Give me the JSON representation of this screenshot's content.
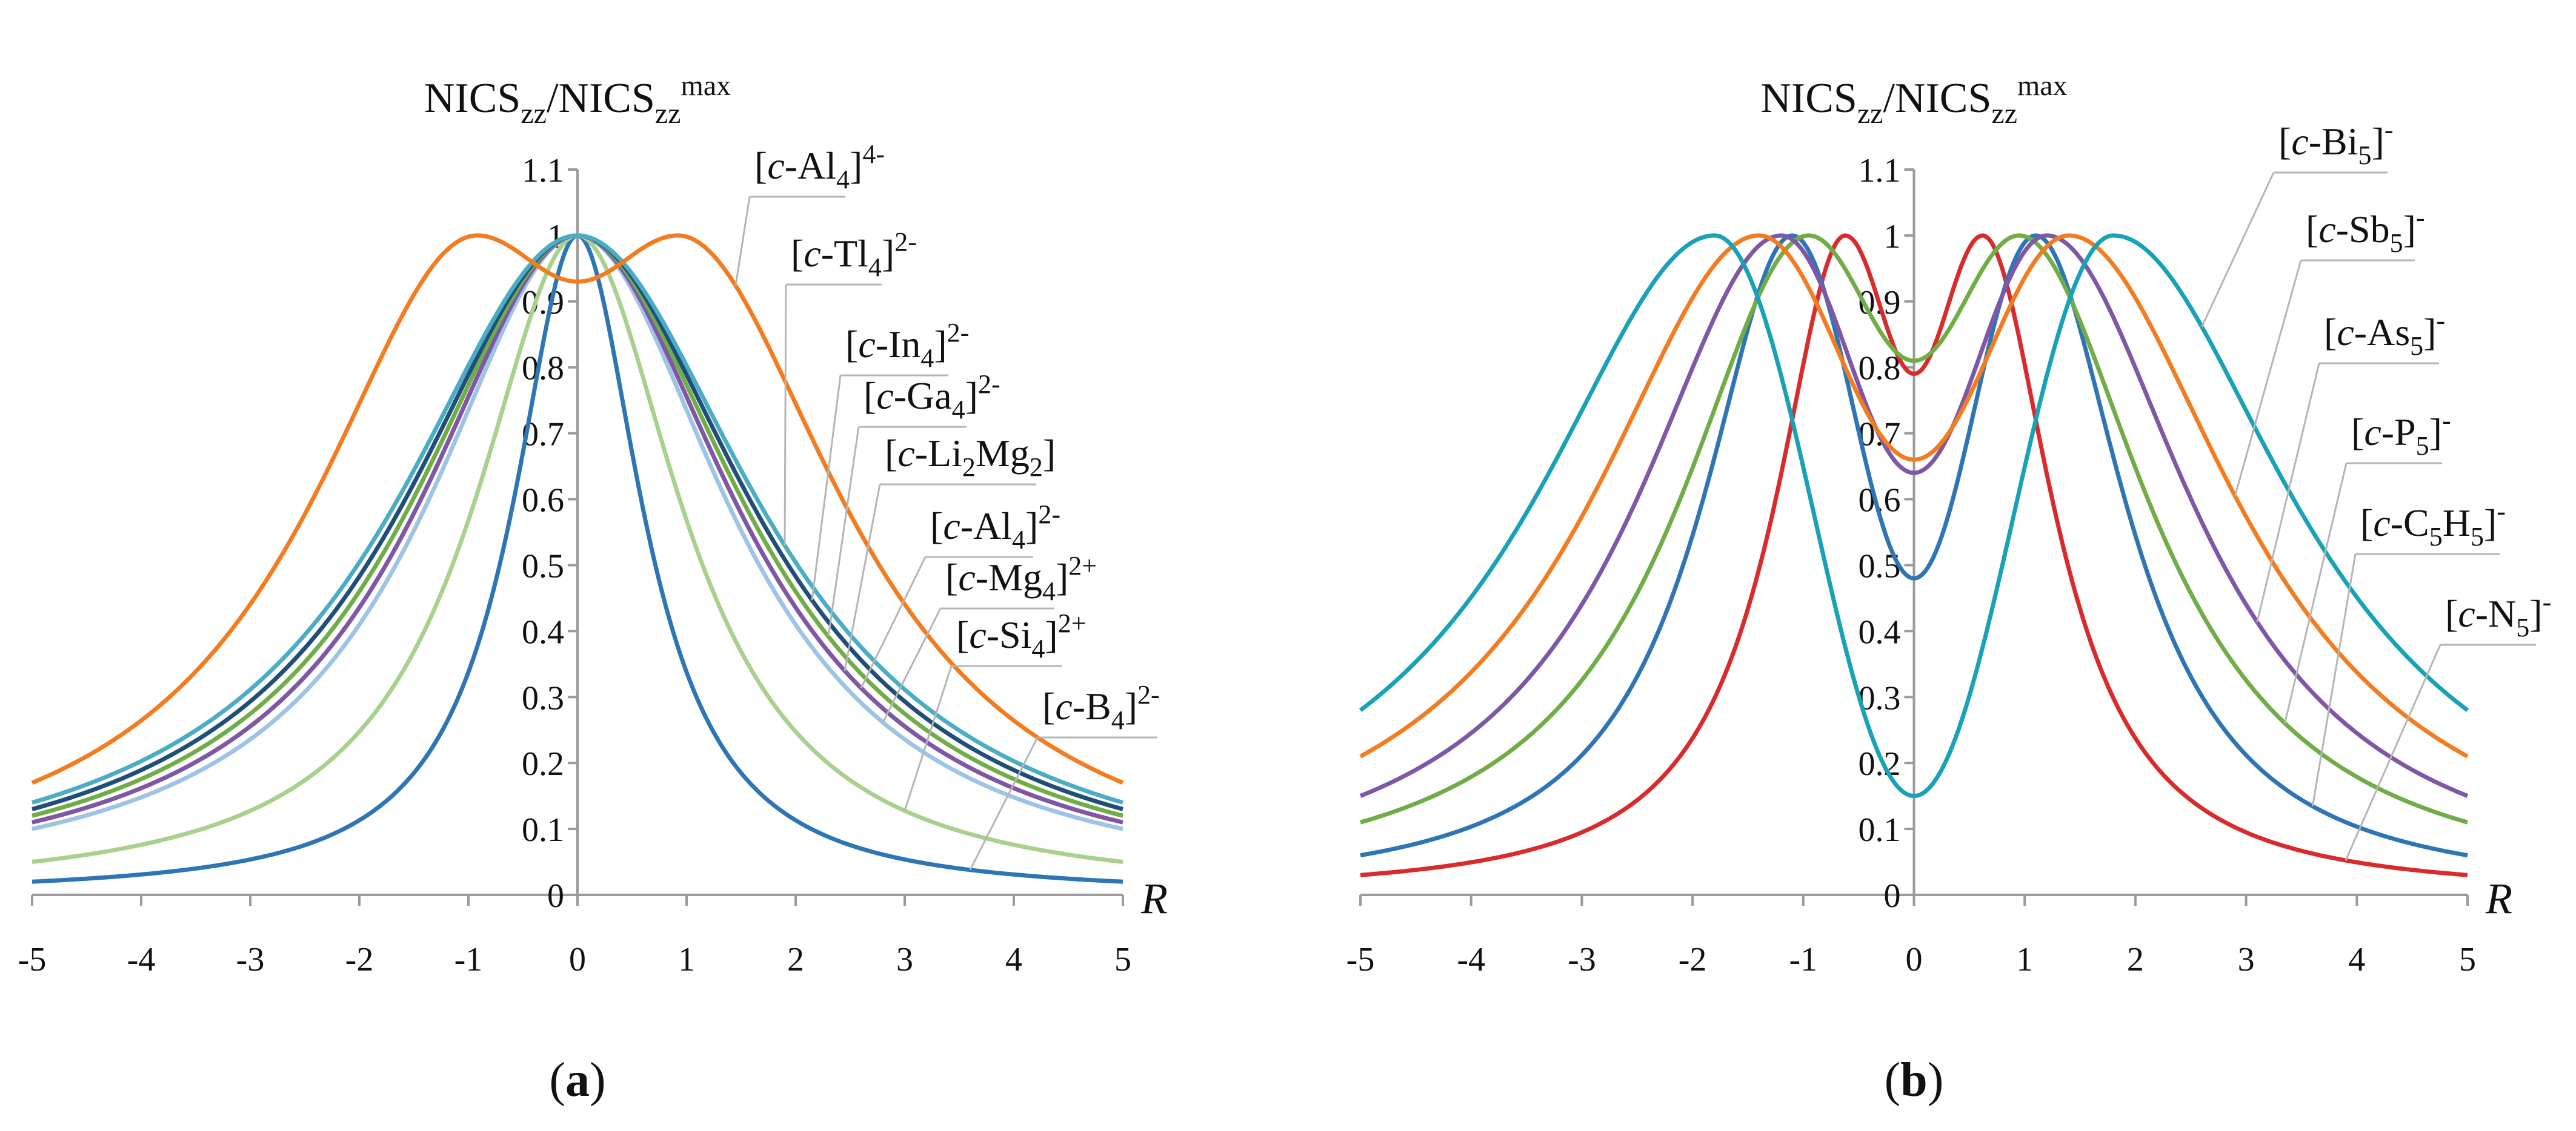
{
  "chart_data": [
    {
      "panel": "(a)",
      "type": "line",
      "title": "NICSzz/NICSzzmax",
      "title_parts": {
        "t1": "NICS",
        "s1": "zz",
        "t2": "/NICS",
        "s2": "zz",
        "sup": "max"
      },
      "xlabel": "R",
      "xlim": [
        -5,
        5
      ],
      "ylim": [
        0,
        1.1
      ],
      "xticks": [
        "-5",
        "-4",
        "-3",
        "-2",
        "-1",
        "0",
        "1",
        "2",
        "3",
        "4",
        "5"
      ],
      "yticks": [
        "0",
        "0.1",
        "0.2",
        "0.3",
        "0.4",
        "0.5",
        "0.6",
        "0.7",
        "0.8",
        "0.9",
        "1",
        "1.1"
      ],
      "series": [
        {
          "name": "[c-Al4]4-",
          "parts": {
            "pre": "[c-Al",
            "sub": "4",
            "post": "]",
            "sup": "4-"
          },
          "color": "#F47C20",
          "model": "ring",
          "a": 0.92,
          "h": 0.55,
          "dip": 0.93,
          "tail5": 0.17
        },
        {
          "name": "[c-Tl4]2-",
          "parts": {
            "pre": "[c-Tl",
            "sub": "4",
            "post": "]",
            "sup": "2-"
          },
          "color": "#4BACC6",
          "model": "peak",
          "value0": 1.0,
          "tail5": 0.14
        },
        {
          "name": "[c-In4]2-",
          "parts": {
            "pre": "[c-In",
            "sub": "4",
            "post": "]",
            "sup": "2-"
          },
          "color": "#1F4E79",
          "model": "peak",
          "value0": 1.0,
          "tail5": 0.13
        },
        {
          "name": "[c-Ga4]2-",
          "parts": {
            "pre": "[c-Ga",
            "sub": "4",
            "post": "]",
            "sup": "2-"
          },
          "color": "#70AD47",
          "model": "peak",
          "value0": 1.0,
          "tail5": 0.12
        },
        {
          "name": "[c-Li2Mg2]",
          "parts": {
            "pre": "[c-Li",
            "sub": "2",
            "post": "Mg",
            "sub2": "2",
            "post2": "]"
          },
          "color": "#7E57A6",
          "model": "peak",
          "value0": 1.0,
          "tail5": 0.11
        },
        {
          "name": "[c-Al4]2-",
          "parts": {
            "pre": "[c-Al",
            "sub": "4",
            "post": "]",
            "sup": "2-"
          },
          "color": "#C0504D",
          "model": "peak",
          "value0": 1.0,
          "tail5": 0.11
        },
        {
          "name": "[c-Mg4]2+",
          "parts": {
            "pre": "[c-Mg",
            "sub": "4",
            "post": "]",
            "sup": "2+"
          },
          "color": "#9DC3E6",
          "model": "peak",
          "value0": 1.0,
          "tail5": 0.1
        },
        {
          "name": "[c-Si4]2+",
          "parts": {
            "pre": "[c-Si",
            "sub": "4",
            "post": "]",
            "sup": "2+"
          },
          "color": "#A9D18E",
          "model": "peak",
          "value0": 1.0,
          "tail5": 0.05
        },
        {
          "name": "[c-B4]2-",
          "parts": {
            "pre": "[c-B",
            "sub": "4",
            "post": "]",
            "sup": "2-"
          },
          "color": "#2E75B6",
          "model": "peak",
          "value0": 1.0,
          "tail5": 0.02
        }
      ],
      "caption": "(a)"
    },
    {
      "panel": "(b)",
      "type": "line",
      "title": "NICSzz/NICSzzmax",
      "title_parts": {
        "t1": "NICS",
        "s1": "zz",
        "t2": "/NICS",
        "s2": "zz",
        "sup": "max"
      },
      "xlabel": "R",
      "xlim": [
        -5,
        5
      ],
      "ylim": [
        0,
        1.1
      ],
      "xticks": [
        "-5",
        "-4",
        "-3",
        "-2",
        "-1",
        "0",
        "1",
        "2",
        "3",
        "4",
        "5"
      ],
      "yticks": [
        "0",
        "0.1",
        "0.2",
        "0.3",
        "0.4",
        "0.5",
        "0.6",
        "0.7",
        "0.8",
        "0.9",
        "1",
        "1.1"
      ],
      "series": [
        {
          "name": "[c-Bi5]-",
          "parts": {
            "pre": "[c-Bi",
            "sub": "5",
            "post": "]",
            "sup": "-"
          },
          "color": "#17A2B8",
          "model": "ring",
          "a": 1.8,
          "h": 0.45,
          "dip": 0.15,
          "tail5": 0.28
        },
        {
          "name": "[c-Sb5]-",
          "parts": {
            "pre": "[c-Sb",
            "sub": "5",
            "post": "]",
            "sup": "-"
          },
          "color": "#F47C20",
          "model": "ring",
          "a": 1.4,
          "h": 0.75,
          "dip": 0.66,
          "tail5": 0.21
        },
        {
          "name": "[c-As5]-",
          "parts": {
            "pre": "[c-As",
            "sub": "5",
            "post": "]",
            "sup": "-"
          },
          "color": "#7E57A6",
          "model": "ring",
          "a": 1.2,
          "h": 0.85,
          "dip": 0.64,
          "tail5": 0.15
        },
        {
          "name": "[c-P5]-",
          "parts": {
            "pre": "[c-P",
            "sub": "5",
            "post": "]",
            "sup": "-"
          },
          "color": "#70AD47",
          "model": "ring",
          "a": 0.95,
          "h": 0.8,
          "dip": 0.81,
          "tail5": 0.11
        },
        {
          "name": "[c-C5H5]-",
          "parts": {
            "pre": "[c-C",
            "sub": "5",
            "post": "H",
            "sub2": "5",
            "post2": "]",
            "sup": "-"
          },
          "color": "#2E75B6",
          "model": "ring",
          "a": 1.1,
          "h": 0.45,
          "dip": 0.48,
          "tail5": 0.06
        },
        {
          "name": "[c-N5]-",
          "parts": {
            "pre": "[c-N",
            "sub": "5",
            "post": "]",
            "sup": "-"
          },
          "color": "#D92B2B",
          "model": "ring",
          "a": 0.62,
          "h": 0.8,
          "dip": 0.79,
          "tail5": 0.03
        }
      ],
      "caption": "(b)"
    }
  ]
}
